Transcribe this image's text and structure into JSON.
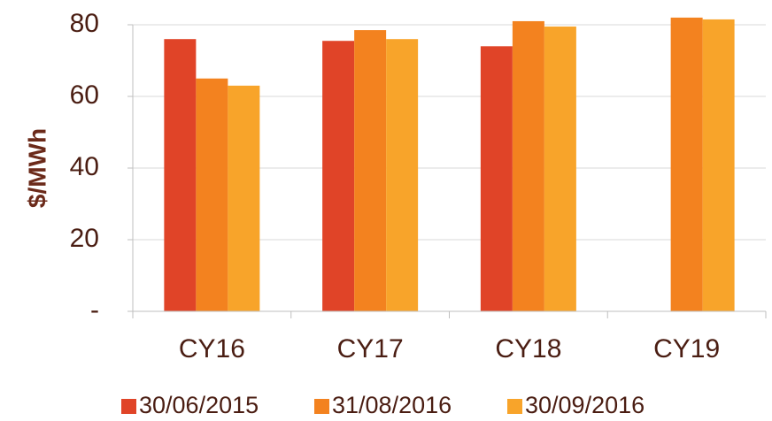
{
  "chart_data": {
    "type": "bar",
    "y_label": "$/MWh",
    "categories": [
      "CY16",
      "CY17",
      "CY18",
      "CY19"
    ],
    "series": [
      {
        "name": "30/06/2015",
        "color": "#e04428",
        "values": [
          76,
          75.5,
          74,
          null
        ]
      },
      {
        "name": "31/08/2016",
        "color": "#f3821f",
        "values": [
          65,
          78.5,
          81,
          82
        ]
      },
      {
        "name": "30/09/2016",
        "color": "#f8a42a",
        "values": [
          63,
          76,
          79.5,
          81.5
        ]
      }
    ],
    "ylim": [
      0,
      80
    ],
    "yticks": [
      {
        "value": 0,
        "label": "-"
      },
      20,
      40,
      60,
      80
    ],
    "grid": true,
    "legend": "bottom"
  }
}
